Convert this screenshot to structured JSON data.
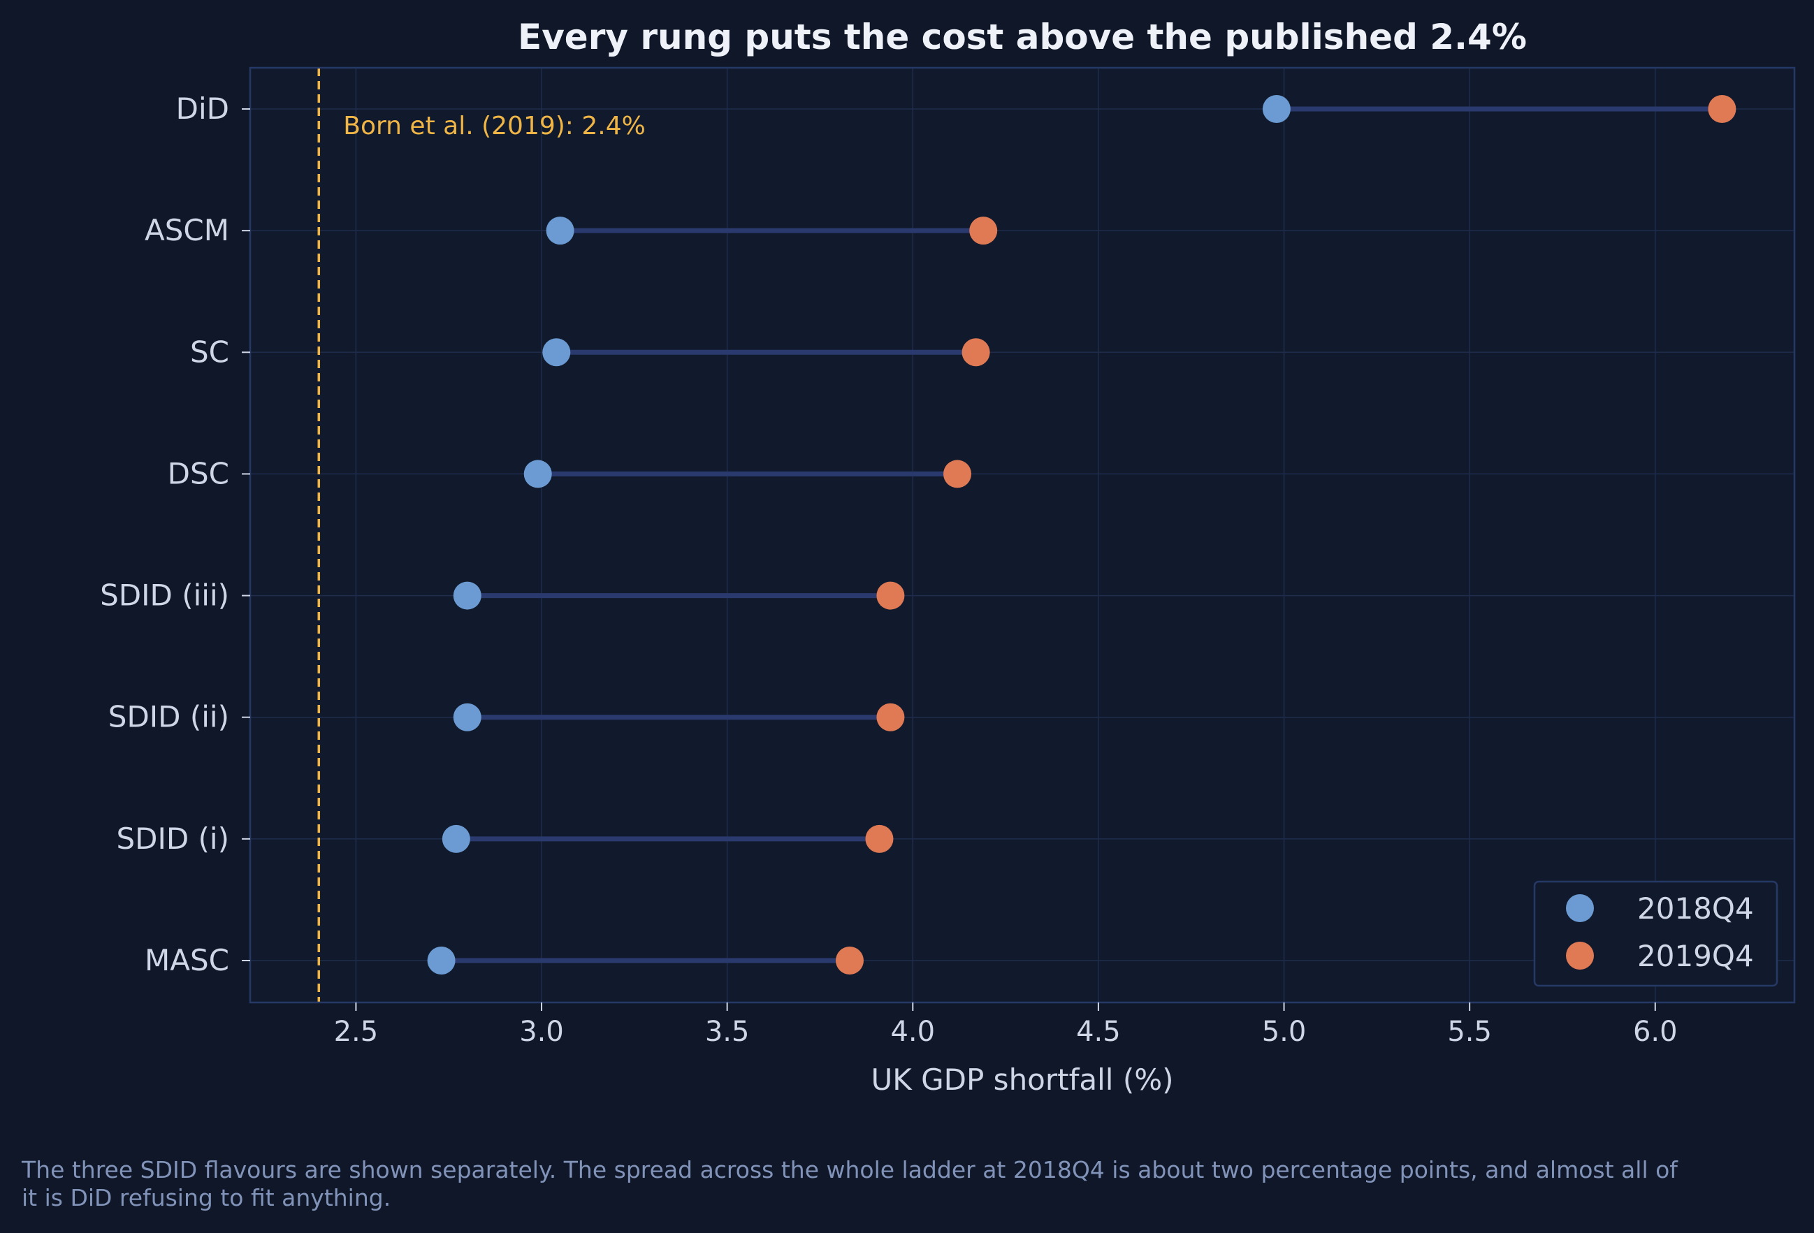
{
  "chart_data": {
    "type": "dumbbell",
    "title": "Every rung puts the cost above the published 2.4%",
    "xlabel": "UK GDP shortfall (%)",
    "ylabel": "",
    "xlim": [
      2.215,
      6.375
    ],
    "xticks": [
      "2.5",
      "3.0",
      "3.5",
      "4.0",
      "4.5",
      "5.0",
      "5.5",
      "6.0"
    ],
    "categories": [
      "DiD",
      "ASCM",
      "SC",
      "DSC",
      "SDID (iii)",
      "SDID (ii)",
      "SDID (i)",
      "MASC"
    ],
    "series": [
      {
        "name": "2018Q4",
        "color": "#6b9bd2",
        "values": [
          4.98,
          3.05,
          3.04,
          2.99,
          2.8,
          2.8,
          2.77,
          2.73
        ]
      },
      {
        "name": "2019Q4",
        "color": "#e07a55",
        "values": [
          6.18,
          4.19,
          4.17,
          4.12,
          3.94,
          3.94,
          3.91,
          3.83
        ]
      }
    ],
    "reference_line": {
      "value": 2.4,
      "label": "Born et al. (2019): 2.4%",
      "color": "#f0b547",
      "style": "dashed"
    },
    "grid": true,
    "legend_position": "bottom-right",
    "colors": {
      "background": "#0f1729",
      "axes_bg": "#111a2c",
      "axes_border": "#263866",
      "connector": "#2a3a6e",
      "text": "#cfd6e6",
      "title": "#eef2f8"
    }
  },
  "caption": "The three SDID flavours are shown separately. The spread across the whole ladder at 2018Q4 is about two percentage points, and almost all of it is DiD refusing to fit anything."
}
